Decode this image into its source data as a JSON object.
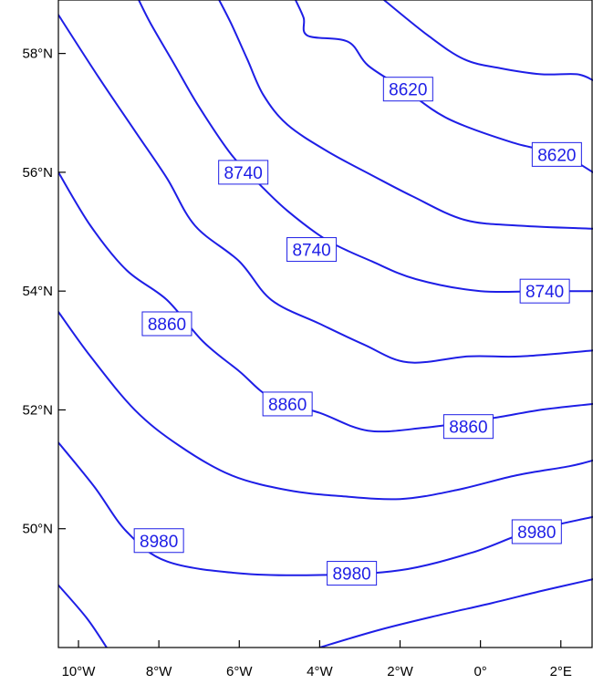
{
  "chart_data": {
    "type": "contour",
    "xlim": [
      -10.5,
      2.8
    ],
    "ylim": [
      48.0,
      58.9
    ],
    "line_color": "#1e1ee6",
    "x_ticks": [
      {
        "value": -10,
        "label": "10°W"
      },
      {
        "value": -8,
        "label": "8°W"
      },
      {
        "value": -6,
        "label": "6°W"
      },
      {
        "value": -4,
        "label": "4°W"
      },
      {
        "value": -2,
        "label": "2°W"
      },
      {
        "value": 0,
        "label": "0°"
      },
      {
        "value": 2,
        "label": "2°E"
      }
    ],
    "y_ticks": [
      {
        "value": 50,
        "label": "50°N"
      },
      {
        "value": 52,
        "label": "52°N"
      },
      {
        "value": 54,
        "label": "54°N"
      },
      {
        "value": 56,
        "label": "56°N"
      },
      {
        "value": 58,
        "label": "58°N"
      }
    ],
    "contours": [
      {
        "level": "",
        "points": [
          [
            -2.4,
            58.9
          ],
          [
            -1.3,
            58.3
          ],
          [
            -0.4,
            57.9
          ],
          [
            0.5,
            57.75
          ],
          [
            1.5,
            57.65
          ],
          [
            2.4,
            57.65
          ],
          [
            2.8,
            57.55
          ]
        ]
      },
      {
        "level": "8620",
        "points": [
          [
            -4.6,
            58.9
          ],
          [
            -4.4,
            58.6
          ],
          [
            -4.3,
            58.3
          ],
          [
            -3.3,
            58.2
          ],
          [
            -2.8,
            57.8
          ],
          [
            -1.9,
            57.4
          ],
          [
            -0.8,
            56.9
          ],
          [
            0.8,
            56.5
          ],
          [
            2.0,
            56.3
          ],
          [
            2.8,
            56.0
          ]
        ]
      },
      {
        "level": "8740",
        "points": [
          [
            -6.5,
            58.9
          ],
          [
            -6.2,
            58.5
          ],
          [
            -5.8,
            57.9
          ],
          [
            -5.4,
            57.3
          ],
          [
            -4.8,
            56.8
          ],
          [
            -3.8,
            56.35
          ],
          [
            -2.7,
            55.95
          ],
          [
            -1.7,
            55.6
          ],
          [
            -0.4,
            55.2
          ],
          [
            1.0,
            55.1
          ],
          [
            2.8,
            55.05
          ]
        ]
      },
      {
        "level": "8740",
        "points": [
          [
            -8.5,
            58.9
          ],
          [
            -8.2,
            58.5
          ],
          [
            -7.6,
            57.8
          ],
          [
            -7.0,
            57.1
          ],
          [
            -6.2,
            56.3
          ],
          [
            -5.5,
            55.8
          ],
          [
            -4.8,
            55.35
          ],
          [
            -3.8,
            54.85
          ],
          [
            -2.7,
            54.5
          ],
          [
            -1.6,
            54.2
          ],
          [
            0.0,
            54.0
          ],
          [
            1.6,
            54.0
          ],
          [
            2.8,
            54.0
          ]
        ]
      },
      {
        "level": "",
        "points": [
          [
            -10.5,
            58.65
          ],
          [
            -9.5,
            57.6
          ],
          [
            -8.6,
            56.7
          ],
          [
            -7.8,
            55.9
          ],
          [
            -7.1,
            55.1
          ],
          [
            -6.0,
            54.5
          ],
          [
            -5.2,
            53.85
          ],
          [
            -4.0,
            53.45
          ],
          [
            -2.9,
            53.1
          ],
          [
            -1.8,
            52.8
          ],
          [
            -0.3,
            52.9
          ],
          [
            1.0,
            52.9
          ],
          [
            2.8,
            53.0
          ]
        ]
      },
      {
        "level": "8860",
        "points": [
          [
            -10.5,
            56.0
          ],
          [
            -9.7,
            55.1
          ],
          [
            -8.8,
            54.35
          ],
          [
            -7.8,
            53.85
          ],
          [
            -6.9,
            53.15
          ],
          [
            -6.0,
            52.65
          ],
          [
            -5.2,
            52.2
          ],
          [
            -4.0,
            51.95
          ],
          [
            -2.8,
            51.65
          ],
          [
            -1.4,
            51.7
          ],
          [
            0.2,
            51.85
          ],
          [
            1.5,
            52.0
          ],
          [
            2.8,
            52.1
          ]
        ]
      },
      {
        "level": "",
        "points": [
          [
            -10.5,
            53.65
          ],
          [
            -9.7,
            52.9
          ],
          [
            -8.6,
            52.0
          ],
          [
            -7.5,
            51.4
          ],
          [
            -6.2,
            50.9
          ],
          [
            -4.8,
            50.65
          ],
          [
            -3.5,
            50.55
          ],
          [
            -2.0,
            50.5
          ],
          [
            -0.6,
            50.65
          ],
          [
            0.9,
            50.9
          ],
          [
            2.2,
            51.05
          ],
          [
            2.8,
            51.15
          ]
        ]
      },
      {
        "level": "8980",
        "points": [
          [
            -10.5,
            51.45
          ],
          [
            -9.6,
            50.7
          ],
          [
            -8.8,
            49.95
          ],
          [
            -7.8,
            49.45
          ],
          [
            -6.0,
            49.25
          ],
          [
            -4.0,
            49.22
          ],
          [
            -2.0,
            49.3
          ],
          [
            -0.2,
            49.6
          ],
          [
            1.2,
            49.95
          ],
          [
            2.8,
            50.2
          ]
        ]
      },
      {
        "level": "",
        "points": [
          [
            -10.5,
            49.05
          ],
          [
            -9.8,
            48.5
          ],
          [
            -9.3,
            48.0
          ]
        ]
      },
      {
        "level": "",
        "points": [
          [
            -4.0,
            48.0
          ],
          [
            -2.5,
            48.3
          ],
          [
            -1.0,
            48.55
          ],
          [
            0.3,
            48.75
          ],
          [
            1.5,
            48.95
          ],
          [
            2.8,
            49.15
          ]
        ]
      }
    ],
    "labels": [
      {
        "text": "8620",
        "x": -1.8,
        "y": 57.4
      },
      {
        "text": "8620",
        "x": 1.9,
        "y": 56.3
      },
      {
        "text": "8740",
        "x": -5.9,
        "y": 56.0
      },
      {
        "text": "8740",
        "x": -4.2,
        "y": 54.7
      },
      {
        "text": "8740",
        "x": 1.6,
        "y": 54.0
      },
      {
        "text": "8860",
        "x": -7.8,
        "y": 53.45
      },
      {
        "text": "8860",
        "x": -4.8,
        "y": 52.1
      },
      {
        "text": "8860",
        "x": -0.3,
        "y": 51.72
      },
      {
        "text": "8980",
        "x": -8.0,
        "y": 49.8
      },
      {
        "text": "8980",
        "x": -3.2,
        "y": 49.25
      },
      {
        "text": "8980",
        "x": 1.4,
        "y": 49.95
      }
    ]
  }
}
